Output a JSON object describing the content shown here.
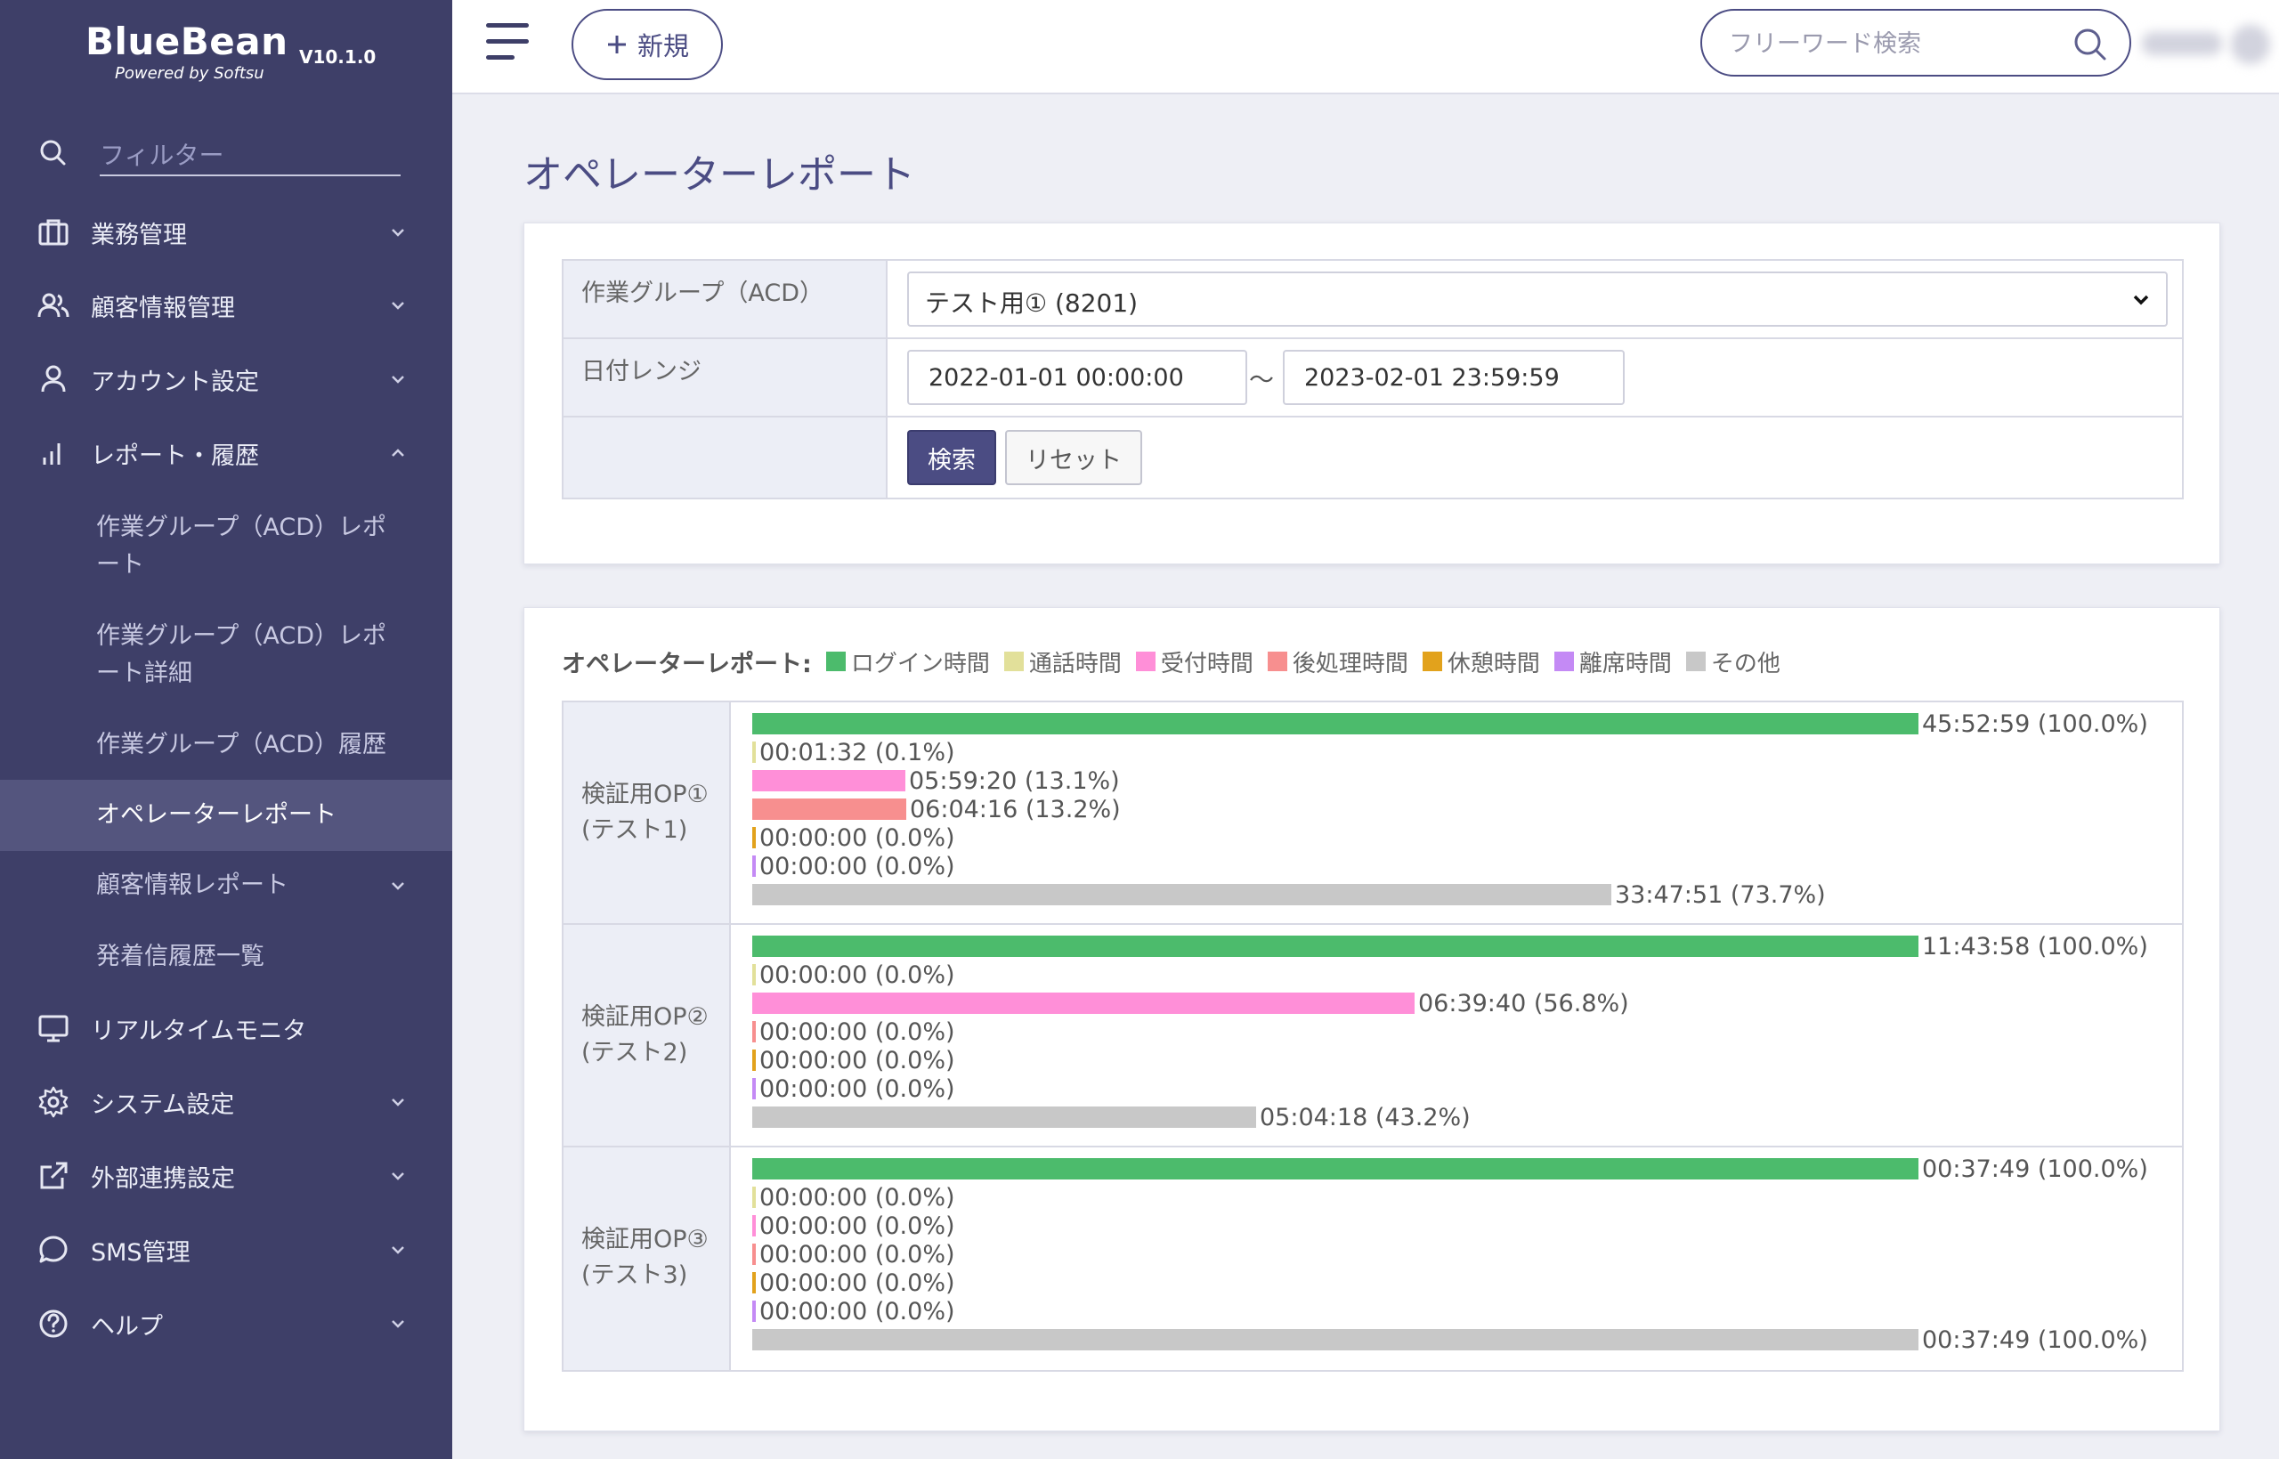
{
  "app": {
    "name": "BlueBean",
    "tagline": "Powered by Softsu",
    "version": "V10.1.0"
  },
  "sidebar": {
    "filter_placeholder": "フィルター",
    "items": [
      {
        "label": "業務管理",
        "icon": "briefcase-icon",
        "expanded": false
      },
      {
        "label": "顧客情報管理",
        "icon": "users-icon",
        "expanded": false
      },
      {
        "label": "アカウント設定",
        "icon": "user-icon",
        "expanded": false
      },
      {
        "label": "レポート・履歴",
        "icon": "bar-chart-icon",
        "expanded": true
      },
      {
        "label": "リアルタイムモニタ",
        "icon": "monitor-icon",
        "expanded": false
      },
      {
        "label": "システム設定",
        "icon": "gear-icon",
        "expanded": false
      },
      {
        "label": "外部連携設定",
        "icon": "external-link-icon",
        "expanded": false
      },
      {
        "label": "SMS管理",
        "icon": "chat-bubble-icon",
        "expanded": false
      },
      {
        "label": "ヘルプ",
        "icon": "help-icon",
        "expanded": false
      }
    ],
    "report_sub_items": [
      {
        "label": "作業グループ（ACD）レポート"
      },
      {
        "label": "作業グループ（ACD）レポート詳細"
      },
      {
        "label": "作業グループ（ACD）履歴"
      },
      {
        "label": "オペレーターレポート",
        "active": true
      },
      {
        "label": "顧客情報レポート",
        "has_children": true
      },
      {
        "label": "発着信履歴一覧"
      }
    ]
  },
  "topbar": {
    "new_button": "新規",
    "search_placeholder": "フリーワード検索"
  },
  "page": {
    "title": "オペレーターレポート"
  },
  "filters": {
    "group_label": "作業グループ（ACD）",
    "group_value": "テスト用① (8201)",
    "date_label": "日付レンジ",
    "date_from": "2022-01-01 00:00:00",
    "date_sep": "～",
    "date_to": "2023-02-01 23:59:59",
    "search_button": "検索",
    "reset_button": "リセット"
  },
  "report": {
    "title": "オペレーターレポート:",
    "legend": [
      {
        "label": "ログイン時間",
        "color": "#4cbb6c"
      },
      {
        "label": "通話時間",
        "color": "#e2e09a"
      },
      {
        "label": "受付時間",
        "color": "#ff8fd8"
      },
      {
        "label": "後処理時間",
        "color": "#f78f8f"
      },
      {
        "label": "休憩時間",
        "color": "#e2a21c"
      },
      {
        "label": "離席時間",
        "color": "#c48af5"
      },
      {
        "label": "その他",
        "color": "#c8c8c8"
      }
    ],
    "operators": [
      {
        "name": "検証用OP①",
        "sub": "(テスト1)",
        "bars": [
          {
            "text": "45:52:59 (100.0%)",
            "pct": 100.0
          },
          {
            "text": "00:01:32 (0.1%)",
            "pct": 0.1
          },
          {
            "text": "05:59:20 (13.1%)",
            "pct": 13.1
          },
          {
            "text": "06:04:16 (13.2%)",
            "pct": 13.2
          },
          {
            "text": "00:00:00 (0.0%)",
            "pct": 0.0
          },
          {
            "text": "00:00:00 (0.0%)",
            "pct": 0.0
          },
          {
            "text": "33:47:51 (73.7%)",
            "pct": 73.7
          }
        ]
      },
      {
        "name": "検証用OP②",
        "sub": "(テスト2)",
        "bars": [
          {
            "text": "11:43:58 (100.0%)",
            "pct": 100.0
          },
          {
            "text": "00:00:00 (0.0%)",
            "pct": 0.0
          },
          {
            "text": "06:39:40 (56.8%)",
            "pct": 56.8
          },
          {
            "text": "00:00:00 (0.0%)",
            "pct": 0.0
          },
          {
            "text": "00:00:00 (0.0%)",
            "pct": 0.0
          },
          {
            "text": "00:00:00 (0.0%)",
            "pct": 0.0
          },
          {
            "text": "05:04:18 (43.2%)",
            "pct": 43.2
          }
        ]
      },
      {
        "name": "検証用OP③",
        "sub": "(テスト3)",
        "bars": [
          {
            "text": "00:37:49 (100.0%)",
            "pct": 100.0
          },
          {
            "text": "00:00:00 (0.0%)",
            "pct": 0.0
          },
          {
            "text": "00:00:00 (0.0%)",
            "pct": 0.0
          },
          {
            "text": "00:00:00 (0.0%)",
            "pct": 0.0
          },
          {
            "text": "00:00:00 (0.0%)",
            "pct": 0.0
          },
          {
            "text": "00:00:00 (0.0%)",
            "pct": 0.0
          },
          {
            "text": "00:37:49 (100.0%)",
            "pct": 100.0
          }
        ]
      }
    ]
  }
}
